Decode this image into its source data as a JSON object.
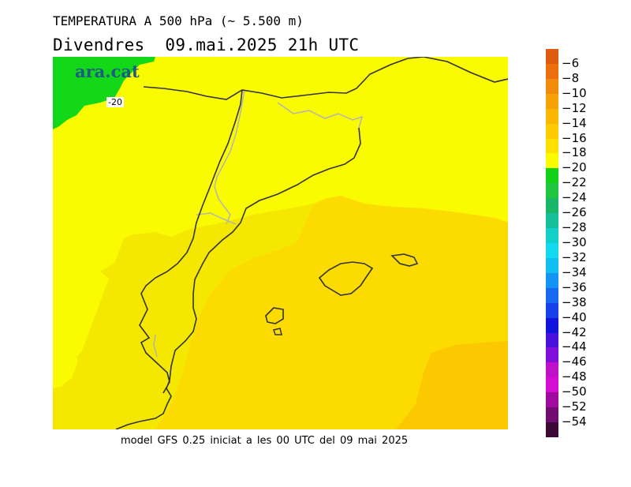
{
  "header": {
    "title": "TEMPERATURA A 500 hPa (~ 5.500 m)",
    "subtitle": "Divendres  09.mai.2025 21h UTC"
  },
  "map": {
    "logo_text": "ara.cat",
    "contour_label": "-20",
    "field_colors": {
      "minus_20_to_minus_22": "#13d818",
      "minus_18_to_minus_20": "#fafa00",
      "minus_16_to_minus_18": "#f5e800",
      "minus_14_to_minus_16": "#fcdc00",
      "minus_12_to_minus_14": "#fcc800"
    },
    "coastline_color": "#333333",
    "border_color": "#b4b4b4"
  },
  "footer": {
    "text": "model GFS 0.25 iniciat a les 00 UTC del 09 mai 2025"
  },
  "legend": {
    "labels": [
      "-6",
      "-8",
      "-10",
      "-12",
      "-14",
      "-16",
      "-18",
      "-20",
      "-22",
      "-24",
      "-26",
      "-28",
      "-30",
      "-32",
      "-34",
      "-36",
      "-38",
      "-40",
      "-42",
      "-44",
      "-46",
      "-48",
      "-50",
      "-52",
      "-54"
    ],
    "colors": [
      "#e05a10",
      "#ec6e0c",
      "#f28a0c",
      "#f6a00a",
      "#fbb700",
      "#fccb00",
      "#fde000",
      "#fafa00",
      "#14d218",
      "#20c640",
      "#18b868",
      "#14bf9a",
      "#10d0c8",
      "#12d8f0",
      "#12bef4",
      "#1494f2",
      "#1668f0",
      "#1640e8",
      "#1014dc",
      "#4a10dc",
      "#8010d8",
      "#c010c8",
      "#d40cd4",
      "#a00a9e",
      "#720c70",
      "#3c0838"
    ]
  }
}
